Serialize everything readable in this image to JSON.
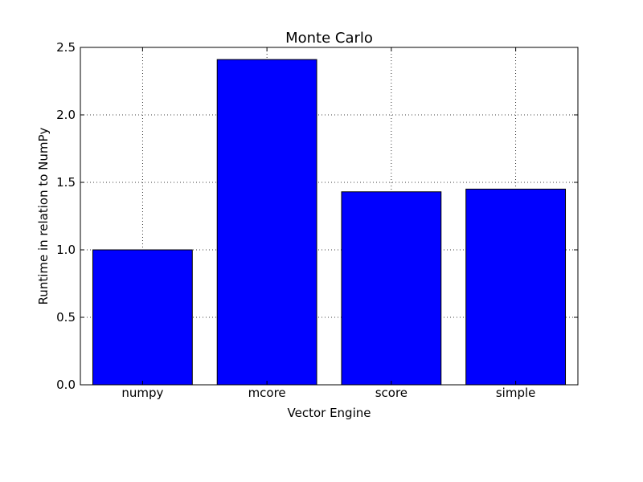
{
  "chart_data": {
    "type": "bar",
    "title": "Monte Carlo",
    "xlabel": "Vector Engine",
    "ylabel": "Runtime in relation to NumPy",
    "categories": [
      "numpy",
      "mcore",
      "score",
      "simple"
    ],
    "values": [
      1.0,
      2.41,
      1.43,
      1.45
    ],
    "ylim": [
      0,
      2.5
    ],
    "yticks": [
      "0.0",
      "0.5",
      "1.0",
      "1.5",
      "2.0",
      "2.5"
    ],
    "grid": true,
    "bar_color": "#0000ff"
  }
}
